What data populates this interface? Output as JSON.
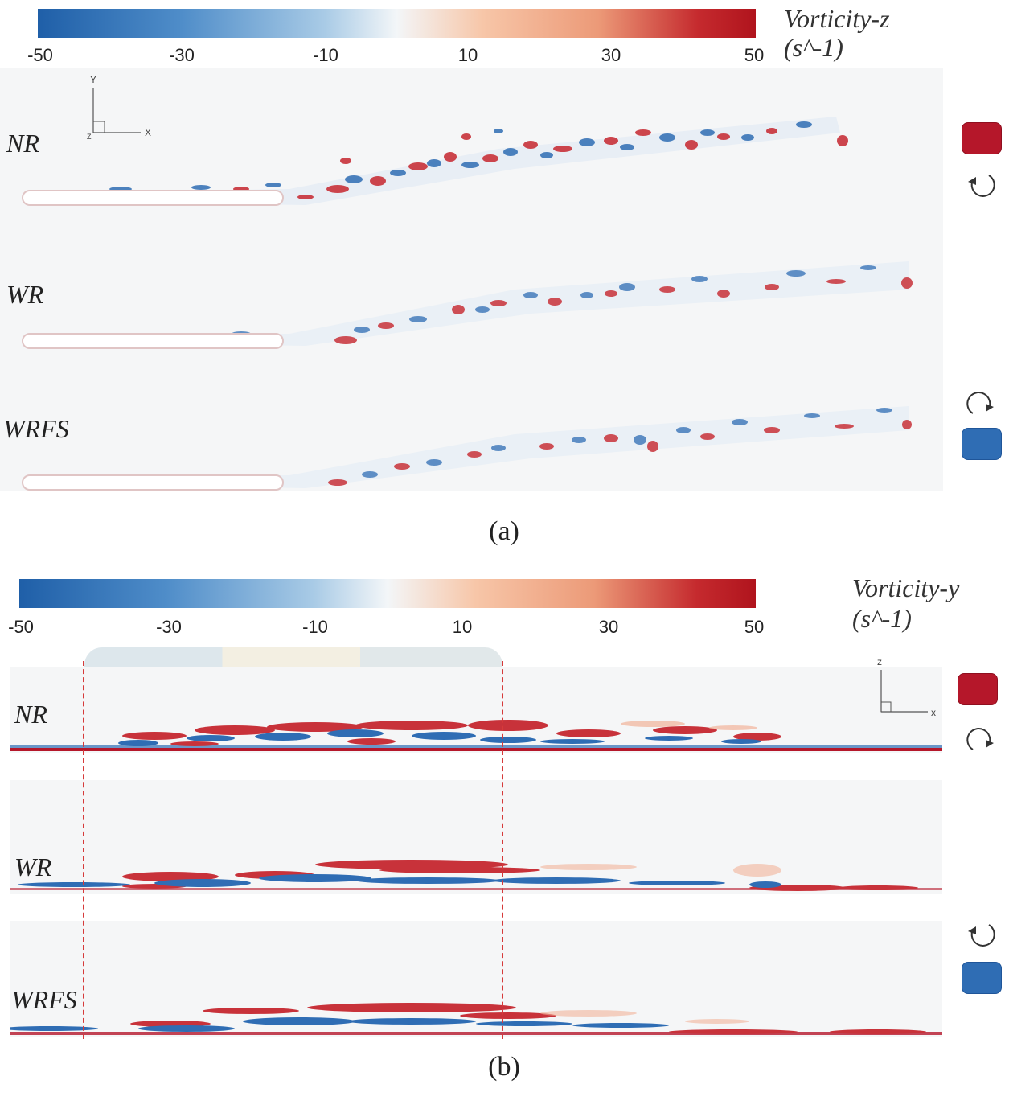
{
  "panel_a": {
    "colorbar": {
      "title_line1": "Vorticity-z",
      "title_line2": "(s^-1)",
      "ticks": [
        "-50",
        "-30",
        "-10",
        "10",
        "30",
        "50"
      ]
    },
    "rows": [
      "NR",
      "WR",
      "WRFS"
    ],
    "axes": {
      "vertical": "Y",
      "horizontal": "X",
      "origin": "Z"
    },
    "caption": "(a)"
  },
  "panel_b": {
    "colorbar": {
      "title_line1": "Vorticity-y",
      "title_line2": "(s^-1)",
      "ticks": [
        "-50",
        "-30",
        "-10",
        "10",
        "30",
        "50"
      ]
    },
    "rows": [
      "NR",
      "WR",
      "WRFS"
    ],
    "axes": {
      "vertical": "z",
      "horizontal": "x"
    },
    "caption": "(b)"
  },
  "colors": {
    "positive": "#b5172a",
    "negative": "#2f6db4",
    "background": "#f5f6f7",
    "guide_line": "#d63a3a"
  }
}
